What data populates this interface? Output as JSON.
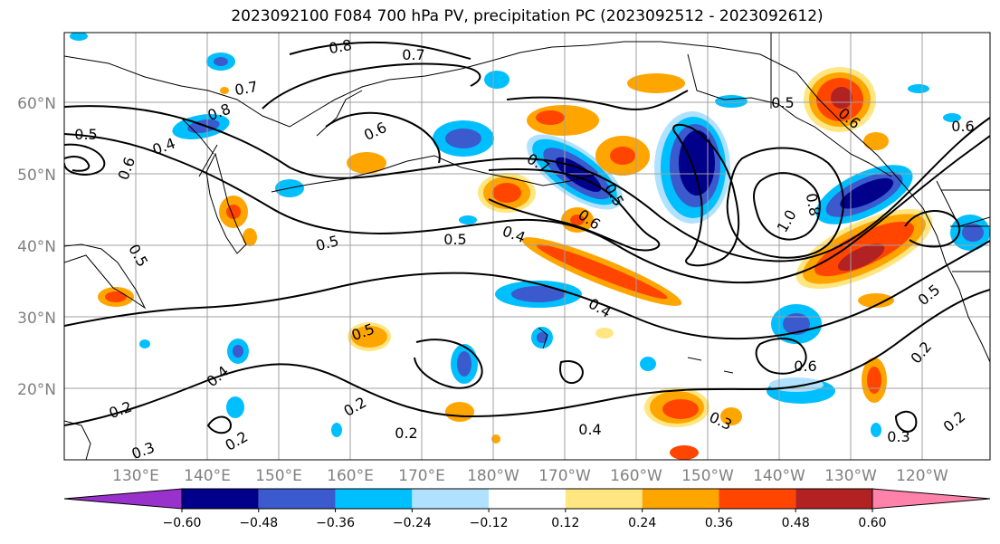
{
  "title": "2023092100 F084 700 hPa PV, precipitation PC (2023092512 - 2023092612)",
  "lat_labels": [
    "60°N",
    "50°N",
    "40°N",
    "30°N",
    "20°N"
  ],
  "lon_labels": [
    "130°E",
    "140°E",
    "150°E",
    "160°E",
    "170°E",
    "180°W",
    "170°W",
    "160°W",
    "150°W",
    "140°W",
    "130°W",
    "120°W"
  ],
  "contour_labels": [
    "0.8",
    "0.7",
    "0.7",
    "0.8",
    "0.6",
    "0.5",
    "0.4",
    "0.6",
    "0.5",
    "0.6",
    "0.7",
    "0.5",
    "0.6",
    "0.5",
    "0.4",
    "0.5",
    "1.0",
    "0.8",
    "0.5",
    "0.6",
    "0.5",
    "0.4",
    "0.5",
    "0.4",
    "0.3",
    "0.2",
    "0.2",
    "0.2",
    "0.6",
    "0.2",
    "0.3",
    "0.2",
    "0.3",
    "0.4",
    "0.2"
  ],
  "colorbar": {
    "ticks": [
      "−0.60",
      "−0.48",
      "−0.36",
      "−0.24",
      "−0.12",
      "0.12",
      "0.24",
      "0.36",
      "0.48",
      "0.60"
    ],
    "colors": [
      "#9932cc",
      "#00008b",
      "#3a5acd",
      "#00bfff",
      "#b0e2ff",
      "#ffffff",
      "#ffe680",
      "#ffa500",
      "#ff4500",
      "#b22222",
      "#ff82ab"
    ]
  },
  "legend_colors": {
    "neg_strong": "#00008b",
    "neg_mid": "#3a5acd",
    "neg_light": "#00bfff",
    "neg_faint": "#b0e2ff",
    "pos_faint": "#ffe680",
    "pos_light": "#ffa500",
    "pos_mid": "#ff4500",
    "pos_strong": "#b22222"
  }
}
